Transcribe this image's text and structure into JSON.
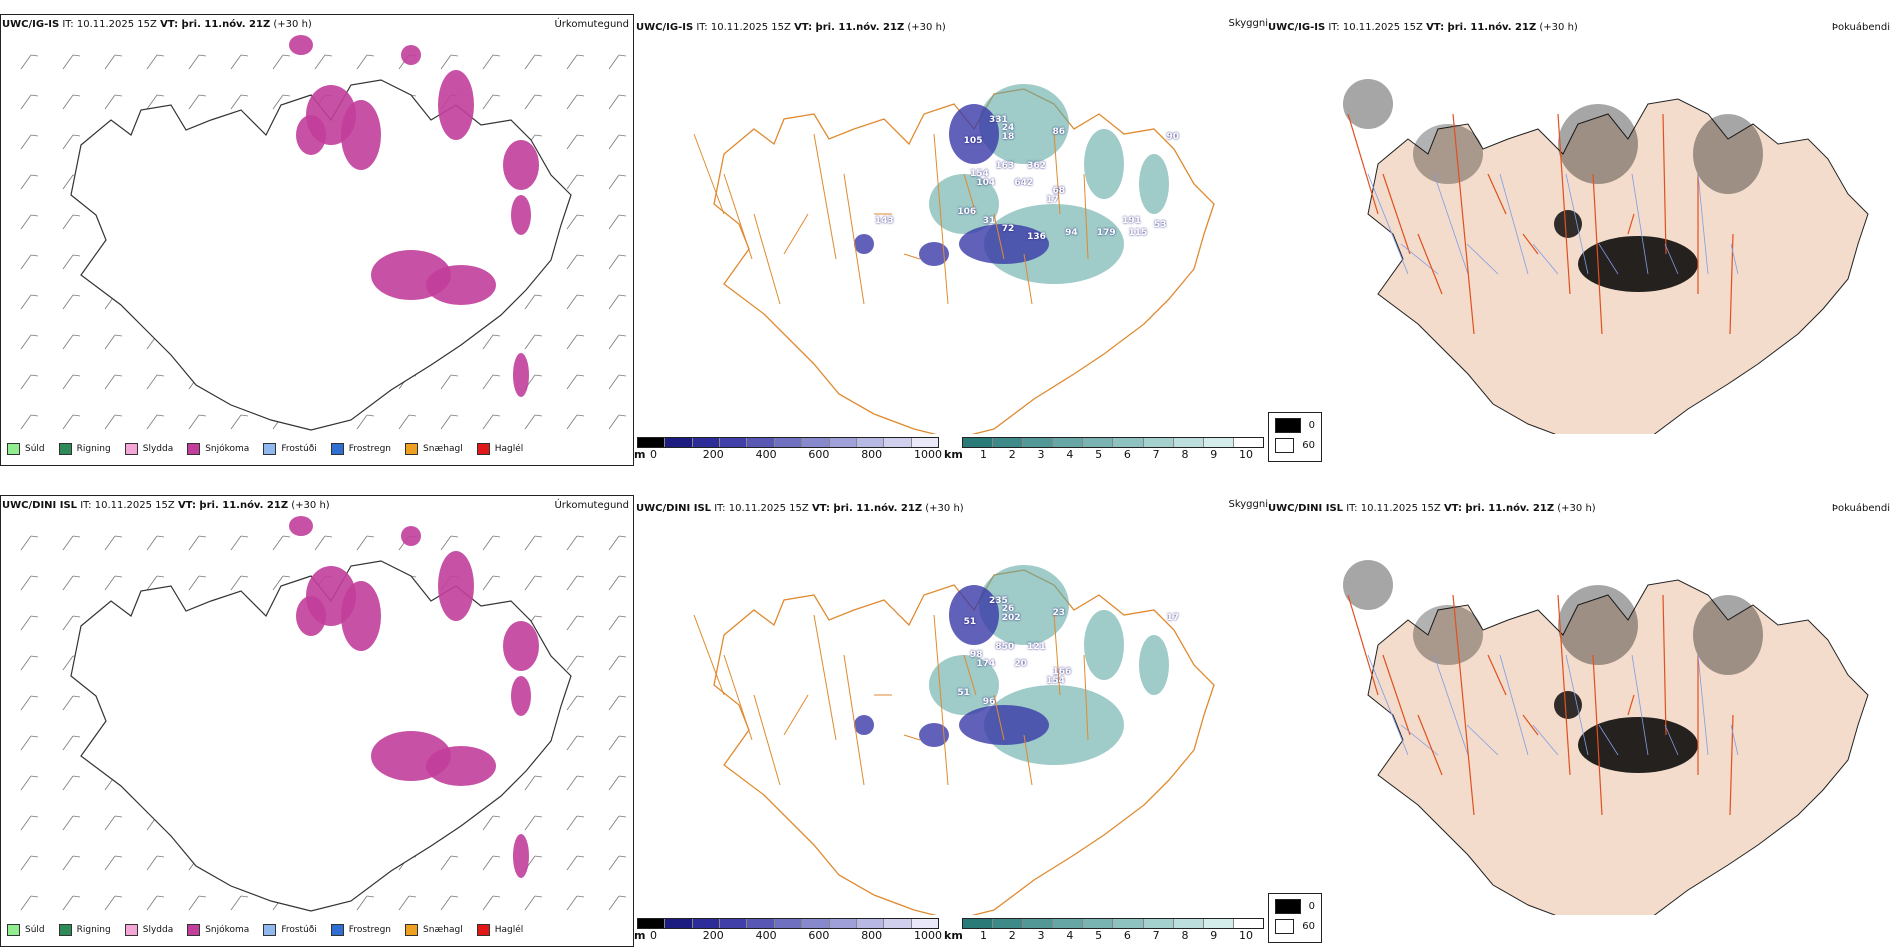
{
  "rows": [
    {
      "model": "UWC/IG-IS",
      "it_label": "IT: 10.11.2025 15Z",
      "vt_label": "VT: þri. 11.nóv. 21Z",
      "lead": "(+30 h)",
      "panels": {
        "precip": {
          "corner": "Úrkomutegund"
        },
        "snow": {
          "corner": "Skyggni",
          "labels": [
            "331",
            "24",
            "105",
            "18",
            "86",
            "90",
            "163",
            "362",
            "154",
            "642",
            "104",
            "68",
            "17",
            "106",
            "31",
            "143",
            "72",
            "136",
            "94",
            "179",
            "191",
            "115",
            "53"
          ]
        },
        "cloud": {
          "corner": "Þokuábendi"
        }
      }
    },
    {
      "model": "UWC/DINI ISL",
      "it_label": "IT: 10.11.2025 15Z",
      "vt_label": "VT: þri. 11.nóv. 21Z",
      "lead": "(+30 h)",
      "panels": {
        "precip": {
          "corner": "Úrkomutegund"
        },
        "snow": {
          "corner": "Skyggni",
          "labels": [
            "235",
            "26",
            "51",
            "202",
            "23",
            "17",
            "850",
            "121",
            "98",
            "20",
            "174",
            "166",
            "154",
            "51",
            "96"
          ]
        },
        "cloud": {
          "corner": "Þokuábendi"
        }
      }
    }
  ],
  "precip_legend": [
    {
      "label": "Súld",
      "color": "#90ee90"
    },
    {
      "label": "Rigning",
      "color": "#2e8b57"
    },
    {
      "label": "Slydda",
      "color": "#f4a6d7"
    },
    {
      "label": "Snjókoma",
      "color": "#c13e9a"
    },
    {
      "label": "Frostúði",
      "color": "#8fb8ef"
    },
    {
      "label": "Frostregn",
      "color": "#2f6fd1"
    },
    {
      "label": "Snæhagl",
      "color": "#f0a020"
    },
    {
      "label": "Haglél",
      "color": "#e01818"
    }
  ],
  "m_scale": {
    "unit": "m",
    "ticks": [
      "0",
      "200",
      "400",
      "600",
      "800",
      "1000"
    ],
    "colors": [
      "#000000",
      "#1c1c80",
      "#2d2d9a",
      "#4040a8",
      "#5858b4",
      "#7070c0",
      "#8888cc",
      "#a0a0d8",
      "#b8b8e4",
      "#d0d0ee",
      "#e8e8f8"
    ]
  },
  "km_scale": {
    "unit": "km",
    "ticks": [
      "1",
      "2",
      "3",
      "4",
      "5",
      "6",
      "7",
      "8",
      "9",
      "10"
    ],
    "colors": [
      "#2a7a78",
      "#3d8a88",
      "#529896",
      "#66a6a4",
      "#7ab4b2",
      "#8ec2c0",
      "#a4d0ce",
      "#bcdedd",
      "#d4ecea",
      "#ffffff"
    ]
  },
  "cloud_legend": [
    {
      "label": "0",
      "color": "#000000"
    },
    {
      "label": "60",
      "color": "#ffffff"
    }
  ]
}
